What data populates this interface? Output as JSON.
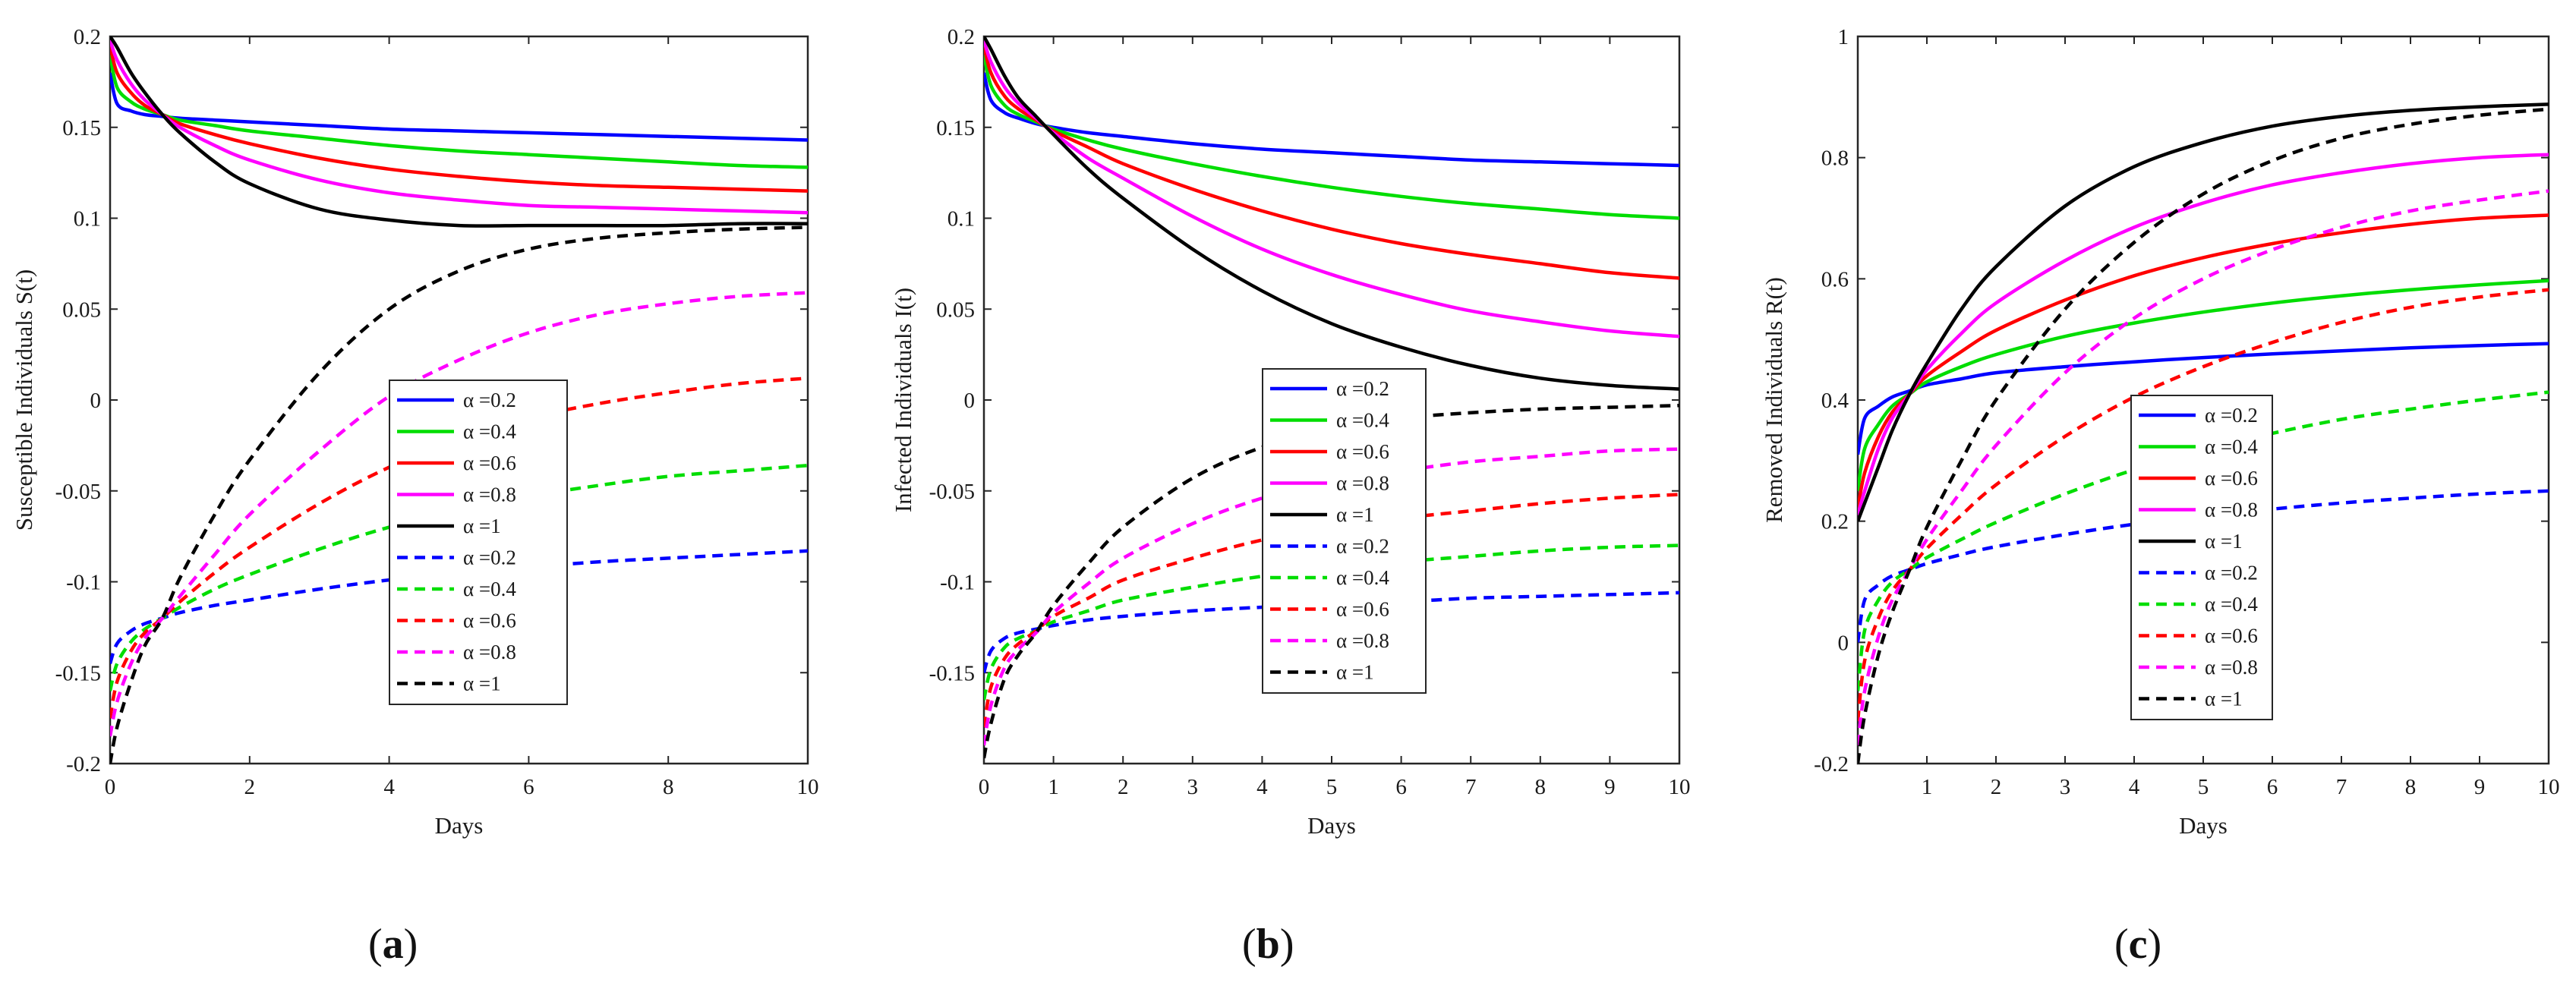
{
  "chart_data": [
    {
      "type": "line",
      "panel_label": "a",
      "xlabel": "Days",
      "ylabel": "Susceptible Individuals S(t)",
      "xlim": [
        0,
        10
      ],
      "ylim": [
        -0.2,
        0.2
      ],
      "xticks": [
        0,
        2,
        4,
        6,
        8,
        10
      ],
      "xtick_labels": [
        "0",
        "2",
        "4",
        "6",
        "8",
        "10"
      ],
      "yticks": [
        -0.2,
        -0.15,
        -0.1,
        -0.05,
        0,
        0.05,
        0.1,
        0.15,
        0.2
      ],
      "ytick_labels": [
        "-0.2",
        "-0.15",
        "-0.1",
        "-0.05",
        "0",
        "0.05",
        "0.1",
        "0.15",
        "0.2"
      ],
      "legend_position": "lower-center",
      "x": [
        0,
        0.1,
        0.3,
        0.5,
        0.75,
        1,
        1.5,
        2,
        3,
        4,
        5,
        6,
        7,
        8,
        9,
        10
      ],
      "series": [
        {
          "name": "α =0.2",
          "color": "#0000ff",
          "style": "solid",
          "values": [
            0.18,
            0.163,
            0.159,
            0.157,
            0.156,
            0.155,
            0.154,
            0.153,
            0.151,
            0.149,
            0.148,
            0.147,
            0.146,
            0.145,
            0.144,
            0.143
          ]
        },
        {
          "name": "α =0.4",
          "color": "#00dd00",
          "style": "solid",
          "values": [
            0.19,
            0.172,
            0.164,
            0.16,
            0.157,
            0.154,
            0.151,
            0.148,
            0.144,
            0.14,
            0.137,
            0.135,
            0.133,
            0.131,
            0.129,
            0.128
          ]
        },
        {
          "name": "α =0.6",
          "color": "#ff0000",
          "style": "solid",
          "values": [
            0.195,
            0.18,
            0.169,
            0.162,
            0.157,
            0.152,
            0.146,
            0.141,
            0.133,
            0.127,
            0.123,
            0.12,
            0.118,
            0.117,
            0.116,
            0.115
          ]
        },
        {
          "name": "α =0.8",
          "color": "#ff00ff",
          "style": "solid",
          "values": [
            0.198,
            0.187,
            0.174,
            0.165,
            0.157,
            0.15,
            0.14,
            0.132,
            0.121,
            0.114,
            0.11,
            0.107,
            0.106,
            0.105,
            0.104,
            0.103
          ]
        },
        {
          "name": "α =1",
          "color": "#000000",
          "style": "solid",
          "values": [
            0.2,
            0.194,
            0.18,
            0.169,
            0.157,
            0.147,
            0.131,
            0.119,
            0.105,
            0.099,
            0.096,
            0.096,
            0.096,
            0.096,
            0.097,
            0.097
          ]
        },
        {
          "name": "α =0.2",
          "color": "#0000ff",
          "style": "dashed",
          "values": [
            -0.145,
            -0.134,
            -0.127,
            -0.123,
            -0.12,
            -0.117,
            -0.113,
            -0.11,
            -0.104,
            -0.099,
            -0.095,
            -0.092,
            -0.089,
            -0.087,
            -0.085,
            -0.083
          ]
        },
        {
          "name": "α =0.4",
          "color": "#00dd00",
          "style": "dashed",
          "values": [
            -0.16,
            -0.145,
            -0.133,
            -0.126,
            -0.12,
            -0.114,
            -0.104,
            -0.096,
            -0.082,
            -0.07,
            -0.061,
            -0.053,
            -0.047,
            -0.042,
            -0.039,
            -0.036
          ]
        },
        {
          "name": "α =0.6",
          "color": "#ff0000",
          "style": "dashed",
          "values": [
            -0.175,
            -0.155,
            -0.138,
            -0.128,
            -0.12,
            -0.111,
            -0.095,
            -0.081,
            -0.057,
            -0.037,
            -0.022,
            -0.01,
            -0.002,
            0.004,
            0.009,
            0.012
          ]
        },
        {
          "name": "α =0.8",
          "color": "#ff00ff",
          "style": "dashed",
          "values": [
            -0.185,
            -0.166,
            -0.145,
            -0.131,
            -0.12,
            -0.108,
            -0.085,
            -0.063,
            -0.028,
            0.002,
            0.022,
            0.037,
            0.047,
            0.053,
            0.057,
            0.059
          ]
        },
        {
          "name": "α =1",
          "color": "#000000",
          "style": "dashed",
          "values": [
            -0.2,
            -0.18,
            -0.155,
            -0.135,
            -0.12,
            -0.098,
            -0.063,
            -0.033,
            0.015,
            0.05,
            0.071,
            0.083,
            0.089,
            0.092,
            0.094,
            0.095
          ]
        }
      ]
    },
    {
      "type": "line",
      "panel_label": "b",
      "xlabel": "Days",
      "ylabel": "Infected Individuals I(t)",
      "xlim": [
        0,
        10
      ],
      "ylim": [
        -0.2,
        0.2
      ],
      "xticks": [
        0,
        1,
        2,
        3,
        4,
        5,
        6,
        7,
        8,
        9,
        10
      ],
      "xtick_labels": [
        "0",
        "1",
        "2",
        "3",
        "4",
        "5",
        "6",
        "7",
        "8",
        "9",
        "10"
      ],
      "yticks": [
        -0.15,
        -0.1,
        -0.05,
        0,
        0.05,
        0.1,
        0.15,
        0.2
      ],
      "ytick_labels": [
        "-0.15",
        "-0.1",
        "-0.05",
        "0",
        "0.05",
        "0.1",
        "0.15",
        "0.2"
      ],
      "legend_position": "lower-center",
      "x": [
        0,
        0.1,
        0.3,
        0.5,
        0.75,
        1,
        1.5,
        2,
        3,
        4,
        5,
        6,
        7,
        8,
        9,
        10
      ],
      "series": [
        {
          "name": "α =0.2",
          "color": "#0000ff",
          "style": "solid",
          "values": [
            0.18,
            0.165,
            0.158,
            0.155,
            0.152,
            0.15,
            0.147,
            0.145,
            0.141,
            0.138,
            0.136,
            0.134,
            0.132,
            0.131,
            0.13,
            0.129
          ]
        },
        {
          "name": "α =0.4",
          "color": "#00dd00",
          "style": "solid",
          "values": [
            0.19,
            0.173,
            0.162,
            0.157,
            0.153,
            0.149,
            0.143,
            0.138,
            0.13,
            0.123,
            0.117,
            0.112,
            0.108,
            0.105,
            0.102,
            0.1
          ]
        },
        {
          "name": "α =0.6",
          "color": "#ff0000",
          "style": "solid",
          "values": [
            0.195,
            0.18,
            0.167,
            0.16,
            0.154,
            0.148,
            0.139,
            0.13,
            0.116,
            0.104,
            0.094,
            0.086,
            0.08,
            0.075,
            0.07,
            0.067
          ]
        },
        {
          "name": "α =0.8",
          "color": "#ff00ff",
          "style": "solid",
          "values": [
            0.198,
            0.186,
            0.172,
            0.163,
            0.155,
            0.147,
            0.133,
            0.122,
            0.101,
            0.083,
            0.069,
            0.058,
            0.049,
            0.043,
            0.038,
            0.035
          ]
        },
        {
          "name": "α =1",
          "color": "#000000",
          "style": "solid",
          "values": [
            0.2,
            0.193,
            0.178,
            0.166,
            0.156,
            0.146,
            0.127,
            0.111,
            0.083,
            0.06,
            0.042,
            0.029,
            0.019,
            0.012,
            0.008,
            0.006
          ]
        },
        {
          "name": "α =0.2",
          "color": "#0000ff",
          "style": "dashed",
          "values": [
            -0.15,
            -0.138,
            -0.131,
            -0.128,
            -0.126,
            -0.124,
            -0.121,
            -0.119,
            -0.116,
            -0.114,
            -0.112,
            -0.111,
            -0.109,
            -0.108,
            -0.107,
            -0.106
          ]
        },
        {
          "name": "α =0.4",
          "color": "#00dd00",
          "style": "dashed",
          "values": [
            -0.165,
            -0.148,
            -0.136,
            -0.131,
            -0.127,
            -0.122,
            -0.116,
            -0.11,
            -0.103,
            -0.097,
            -0.093,
            -0.089,
            -0.086,
            -0.083,
            -0.081,
            -0.08
          ]
        },
        {
          "name": "α =0.6",
          "color": "#ff0000",
          "style": "dashed",
          "values": [
            -0.18,
            -0.158,
            -0.142,
            -0.134,
            -0.127,
            -0.119,
            -0.109,
            -0.099,
            -0.087,
            -0.077,
            -0.07,
            -0.065,
            -0.061,
            -0.057,
            -0.054,
            -0.052
          ]
        },
        {
          "name": "α =0.8",
          "color": "#ff00ff",
          "style": "dashed",
          "values": [
            -0.19,
            -0.168,
            -0.147,
            -0.137,
            -0.128,
            -0.117,
            -0.101,
            -0.087,
            -0.068,
            -0.054,
            -0.045,
            -0.039,
            -0.034,
            -0.031,
            -0.028,
            -0.027
          ]
        },
        {
          "name": "α =1",
          "color": "#000000",
          "style": "dashed",
          "values": [
            -0.197,
            -0.178,
            -0.153,
            -0.14,
            -0.128,
            -0.113,
            -0.09,
            -0.07,
            -0.043,
            -0.026,
            -0.016,
            -0.01,
            -0.007,
            -0.005,
            -0.004,
            -0.003
          ]
        }
      ]
    },
    {
      "type": "line",
      "panel_label": "c",
      "xlabel": "Days",
      "ylabel": "Removed Individuals R(t)",
      "xlim": [
        0,
        10
      ],
      "ylim": [
        -0.2,
        1
      ],
      "xticks": [
        1,
        2,
        3,
        4,
        5,
        6,
        7,
        8,
        9,
        10
      ],
      "xtick_labels": [
        "1",
        "2",
        "3",
        "4",
        "5",
        "6",
        "7",
        "8",
        "9",
        "10"
      ],
      "yticks": [
        -0.2,
        0,
        0.2,
        0.4,
        0.6,
        0.8,
        1
      ],
      "ytick_labels": [
        "-0.2",
        "0",
        "0.2",
        "0.4",
        "0.6",
        "0.8",
        "1"
      ],
      "legend_position": "lower-center",
      "x": [
        0,
        0.1,
        0.3,
        0.5,
        0.75,
        1,
        1.5,
        2,
        3,
        4,
        5,
        6,
        7,
        8,
        9,
        10
      ],
      "series": [
        {
          "name": "α =0.2",
          "color": "#0000ff",
          "style": "solid",
          "values": [
            0.31,
            0.37,
            0.39,
            0.405,
            0.415,
            0.425,
            0.435,
            0.445,
            0.455,
            0.463,
            0.47,
            0.476,
            0.481,
            0.486,
            0.49,
            0.493
          ]
        },
        {
          "name": "α =0.4",
          "color": "#00dd00",
          "style": "solid",
          "values": [
            0.25,
            0.32,
            0.36,
            0.39,
            0.41,
            0.43,
            0.455,
            0.475,
            0.505,
            0.527,
            0.545,
            0.56,
            0.572,
            0.582,
            0.59,
            0.597
          ]
        },
        {
          "name": "α =0.6",
          "color": "#ff0000",
          "style": "solid",
          "values": [
            0.22,
            0.28,
            0.34,
            0.38,
            0.41,
            0.44,
            0.48,
            0.515,
            0.565,
            0.605,
            0.635,
            0.658,
            0.676,
            0.69,
            0.7,
            0.705
          ]
        },
        {
          "name": "α =0.8",
          "color": "#ff00ff",
          "style": "solid",
          "values": [
            0.21,
            0.25,
            0.32,
            0.37,
            0.41,
            0.45,
            0.51,
            0.56,
            0.63,
            0.685,
            0.725,
            0.755,
            0.775,
            0.79,
            0.8,
            0.805
          ]
        },
        {
          "name": "α =1",
          "color": "#000000",
          "style": "solid",
          "values": [
            0.2,
            0.23,
            0.29,
            0.35,
            0.41,
            0.46,
            0.55,
            0.62,
            0.72,
            0.785,
            0.825,
            0.852,
            0.868,
            0.878,
            0.884,
            0.888
          ]
        },
        {
          "name": "α =0.2",
          "color": "#0000ff",
          "style": "dashed",
          "values": [
            0.0,
            0.07,
            0.095,
            0.11,
            0.12,
            0.13,
            0.145,
            0.158,
            0.178,
            0.195,
            0.208,
            0.22,
            0.23,
            0.238,
            0.245,
            0.25
          ]
        },
        {
          "name": "α =0.4",
          "color": "#00dd00",
          "style": "dashed",
          "values": [
            -0.08,
            0.02,
            0.07,
            0.1,
            0.12,
            0.14,
            0.17,
            0.198,
            0.245,
            0.285,
            0.318,
            0.345,
            0.368,
            0.385,
            0.4,
            0.413
          ]
        },
        {
          "name": "α =0.6",
          "color": "#ff0000",
          "style": "dashed",
          "values": [
            -0.13,
            -0.03,
            0.04,
            0.085,
            0.12,
            0.155,
            0.21,
            0.26,
            0.34,
            0.405,
            0.455,
            0.495,
            0.528,
            0.553,
            0.57,
            0.582
          ]
        },
        {
          "name": "α =0.8",
          "color": "#ff00ff",
          "style": "dashed",
          "values": [
            -0.17,
            -0.08,
            0.01,
            0.07,
            0.12,
            0.17,
            0.25,
            0.325,
            0.445,
            0.535,
            0.6,
            0.648,
            0.685,
            0.712,
            0.73,
            0.745
          ]
        },
        {
          "name": "α =1",
          "color": "#000000",
          "style": "dashed",
          "values": [
            -0.2,
            -0.12,
            -0.02,
            0.05,
            0.12,
            0.19,
            0.3,
            0.4,
            0.55,
            0.66,
            0.74,
            0.795,
            0.832,
            0.855,
            0.87,
            0.88
          ]
        }
      ]
    }
  ]
}
